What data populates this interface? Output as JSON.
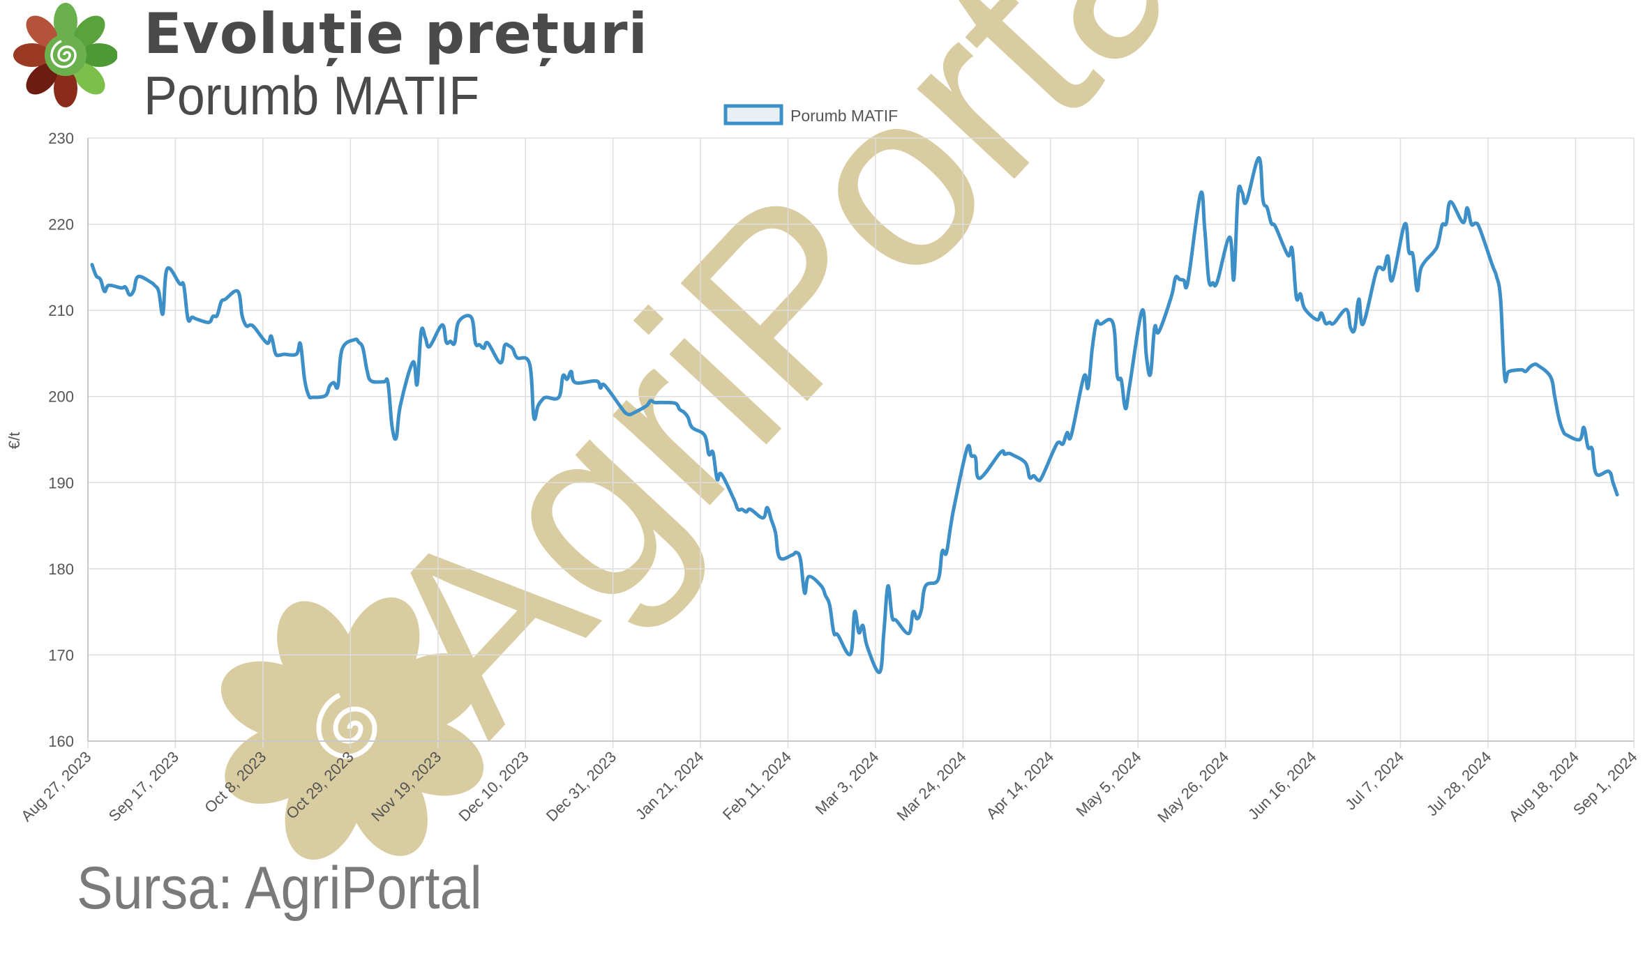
{
  "header": {
    "title": "Evoluție prețuri",
    "subtitle": "Porumb MATIF"
  },
  "watermark": {
    "text": "AgriPortal",
    "color": "#d8cca0"
  },
  "footer": {
    "source": "Sursa: AgriPortal"
  },
  "chart_data": {
    "type": "line",
    "title": "Evoluție prețuri",
    "subtitle": "Porumb MATIF",
    "xlabel": "",
    "ylabel": "€/t",
    "ylim": [
      160,
      230
    ],
    "xlim": [
      "2023-08-27",
      "2024-09-01"
    ],
    "yticks": [
      160,
      170,
      180,
      190,
      200,
      210,
      220,
      230
    ],
    "xtick_labels": [
      "Aug 27, 2023",
      "Sep 17, 2023",
      "Oct 8, 2023",
      "Oct 29, 2023",
      "Nov 19, 2023",
      "Dec 10, 2023",
      "Dec 31, 2023",
      "Jan 21, 2024",
      "Feb 11, 2024",
      "Mar 3, 2024",
      "Mar 24, 2024",
      "Apr 14, 2024",
      "May 5, 2024",
      "May 26, 2024",
      "Jun 16, 2024",
      "Jul 7, 2024",
      "Jul 28, 2024",
      "Aug 18, 2024",
      "Sep 1, 2024"
    ],
    "xtick_dates": [
      "2023-08-27",
      "2023-09-17",
      "2023-10-08",
      "2023-10-29",
      "2023-11-19",
      "2023-12-10",
      "2023-12-31",
      "2024-01-21",
      "2024-02-11",
      "2024-03-03",
      "2024-03-24",
      "2024-04-14",
      "2024-05-05",
      "2024-05-26",
      "2024-06-16",
      "2024-07-07",
      "2024-07-28",
      "2024-08-18",
      "2024-09-01"
    ],
    "grid": true,
    "legend": "top-center",
    "series": [
      {
        "name": "Porumb MATIF",
        "color": "#3d8fc7",
        "points": [
          [
            "2023-08-28",
            215.3
          ],
          [
            "2023-08-29",
            214.0
          ],
          [
            "2023-08-30",
            213.6
          ],
          [
            "2023-08-31",
            212.2
          ],
          [
            "2023-09-01",
            212.9
          ],
          [
            "2023-09-04",
            212.6
          ],
          [
            "2023-09-05",
            212.7
          ],
          [
            "2023-09-06",
            211.8
          ],
          [
            "2023-09-07",
            212.3
          ],
          [
            "2023-09-08",
            213.9
          ],
          [
            "2023-09-11",
            213.3
          ],
          [
            "2023-09-12",
            212.9
          ],
          [
            "2023-09-13",
            212.2
          ],
          [
            "2023-09-14",
            209.6
          ],
          [
            "2023-09-15",
            214.8
          ],
          [
            "2023-09-18",
            213.1
          ],
          [
            "2023-09-19",
            212.9
          ],
          [
            "2023-09-20",
            209.0
          ],
          [
            "2023-09-21",
            209.2
          ],
          [
            "2023-09-22",
            209.0
          ],
          [
            "2023-09-25",
            208.6
          ],
          [
            "2023-09-26",
            209.3
          ],
          [
            "2023-09-27",
            209.4
          ],
          [
            "2023-09-28",
            211.0
          ],
          [
            "2023-09-29",
            211.3
          ],
          [
            "2023-10-02",
            212.2
          ],
          [
            "2023-10-03",
            209.4
          ],
          [
            "2023-10-04",
            208.2
          ],
          [
            "2023-10-05",
            208.3
          ],
          [
            "2023-10-06",
            208.0
          ],
          [
            "2023-10-09",
            206.2
          ],
          [
            "2023-10-10",
            207.0
          ],
          [
            "2023-10-11",
            205.0
          ],
          [
            "2023-10-12",
            204.8
          ],
          [
            "2023-10-13",
            204.9
          ],
          [
            "2023-10-16",
            204.9
          ],
          [
            "2023-10-17",
            206.1
          ],
          [
            "2023-10-18",
            202.0
          ],
          [
            "2023-10-19",
            200.1
          ],
          [
            "2023-10-20",
            199.9
          ],
          [
            "2023-10-23",
            200.1
          ],
          [
            "2023-10-24",
            201.2
          ],
          [
            "2023-10-25",
            201.6
          ],
          [
            "2023-10-26",
            201.2
          ],
          [
            "2023-10-27",
            205.5
          ],
          [
            "2023-10-30",
            206.6
          ],
          [
            "2023-10-31",
            206.3
          ],
          [
            "2023-11-01",
            205.6
          ],
          [
            "2023-11-02",
            203.0
          ],
          [
            "2023-11-03",
            201.8
          ],
          [
            "2023-11-06",
            201.7
          ],
          [
            "2023-11-07",
            201.6
          ],
          [
            "2023-11-08",
            196.5
          ],
          [
            "2023-11-09",
            195.2
          ],
          [
            "2023-11-10",
            199.0
          ],
          [
            "2023-11-13",
            204.0
          ],
          [
            "2023-11-14",
            201.4
          ],
          [
            "2023-11-15",
            207.6
          ],
          [
            "2023-11-16",
            206.8
          ],
          [
            "2023-11-17",
            205.8
          ],
          [
            "2023-11-20",
            208.3
          ],
          [
            "2023-11-21",
            206.3
          ],
          [
            "2023-11-22",
            206.4
          ],
          [
            "2023-11-23",
            206.2
          ],
          [
            "2023-11-24",
            208.7
          ],
          [
            "2023-11-27",
            209.2
          ],
          [
            "2023-11-28",
            206.2
          ],
          [
            "2023-11-29",
            206.0
          ],
          [
            "2023-11-30",
            205.6
          ],
          [
            "2023-12-01",
            206.2
          ],
          [
            "2023-12-04",
            203.9
          ],
          [
            "2023-12-05",
            205.9
          ],
          [
            "2023-12-06",
            205.9
          ],
          [
            "2023-12-07",
            205.5
          ],
          [
            "2023-12-08",
            204.5
          ],
          [
            "2023-12-11",
            203.8
          ],
          [
            "2023-12-12",
            197.6
          ],
          [
            "2023-12-13",
            198.9
          ],
          [
            "2023-12-14",
            199.6
          ],
          [
            "2023-12-15",
            199.9
          ],
          [
            "2023-12-18",
            199.9
          ],
          [
            "2023-12-19",
            202.4
          ],
          [
            "2023-12-20",
            202.0
          ],
          [
            "2023-12-21",
            202.9
          ],
          [
            "2023-12-22",
            201.6
          ],
          [
            "2023-12-27",
            201.8
          ],
          [
            "2023-12-28",
            201.0
          ],
          [
            "2023-12-29",
            201.3
          ],
          [
            "2024-01-02",
            198.7
          ],
          [
            "2024-01-03",
            198.1
          ],
          [
            "2024-01-04",
            197.9
          ],
          [
            "2024-01-05",
            198.1
          ],
          [
            "2024-01-08",
            198.9
          ],
          [
            "2024-01-09",
            199.5
          ],
          [
            "2024-01-10",
            199.3
          ],
          [
            "2024-01-11",
            199.3
          ],
          [
            "2024-01-12",
            199.3
          ],
          [
            "2024-01-15",
            199.2
          ],
          [
            "2024-01-16",
            198.5
          ],
          [
            "2024-01-17",
            198.2
          ],
          [
            "2024-01-18",
            197.6
          ],
          [
            "2024-01-19",
            196.4
          ],
          [
            "2024-01-22",
            195.5
          ],
          [
            "2024-01-23",
            193.3
          ],
          [
            "2024-01-24",
            193.5
          ],
          [
            "2024-01-25",
            190.4
          ],
          [
            "2024-01-26",
            191.0
          ],
          [
            "2024-01-29",
            188.1
          ],
          [
            "2024-01-30",
            186.9
          ],
          [
            "2024-01-31",
            186.9
          ],
          [
            "2024-02-01",
            186.6
          ],
          [
            "2024-02-02",
            186.9
          ],
          [
            "2024-02-05",
            185.9
          ],
          [
            "2024-02-06",
            187.1
          ],
          [
            "2024-02-07",
            185.7
          ],
          [
            "2024-02-08",
            184.2
          ],
          [
            "2024-02-09",
            181.3
          ],
          [
            "2024-02-12",
            181.6
          ],
          [
            "2024-02-13",
            181.9
          ],
          [
            "2024-02-14",
            181.1
          ],
          [
            "2024-02-15",
            177.2
          ],
          [
            "2024-02-16",
            179.1
          ],
          [
            "2024-02-19",
            178.0
          ],
          [
            "2024-02-20",
            176.9
          ],
          [
            "2024-02-21",
            175.8
          ],
          [
            "2024-02-22",
            172.6
          ],
          [
            "2024-02-23",
            172.3
          ],
          [
            "2024-02-26",
            170.1
          ],
          [
            "2024-02-27",
            175.0
          ],
          [
            "2024-02-28",
            172.6
          ],
          [
            "2024-02-29",
            173.4
          ],
          [
            "2024-03-01",
            171.0
          ],
          [
            "2024-03-04",
            168.0
          ],
          [
            "2024-03-05",
            172.6
          ],
          [
            "2024-03-06",
            178.0
          ],
          [
            "2024-03-07",
            174.4
          ],
          [
            "2024-03-08",
            174.0
          ],
          [
            "2024-03-11",
            172.5
          ],
          [
            "2024-03-12",
            175.0
          ],
          [
            "2024-03-13",
            174.2
          ],
          [
            "2024-03-14",
            175.2
          ],
          [
            "2024-03-15",
            178.0
          ],
          [
            "2024-03-18",
            178.7
          ],
          [
            "2024-03-19",
            182.0
          ],
          [
            "2024-03-20",
            181.8
          ],
          [
            "2024-03-21",
            184.8
          ],
          [
            "2024-03-22",
            187.5
          ],
          [
            "2024-03-25",
            194.0
          ],
          [
            "2024-03-26",
            193.1
          ],
          [
            "2024-03-27",
            192.9
          ],
          [
            "2024-03-28",
            190.5
          ],
          [
            "2024-04-02",
            193.5
          ],
          [
            "2024-04-03",
            193.3
          ],
          [
            "2024-04-04",
            193.4
          ],
          [
            "2024-04-05",
            193.2
          ],
          [
            "2024-04-08",
            192.3
          ],
          [
            "2024-04-09",
            190.6
          ],
          [
            "2024-04-10",
            190.8
          ],
          [
            "2024-04-11",
            190.3
          ],
          [
            "2024-04-12",
            190.7
          ],
          [
            "2024-04-15",
            194.0
          ],
          [
            "2024-04-16",
            194.7
          ],
          [
            "2024-04-17",
            194.5
          ],
          [
            "2024-04-18",
            195.8
          ],
          [
            "2024-04-19",
            195.5
          ],
          [
            "2024-04-22",
            202.3
          ],
          [
            "2024-04-23",
            201.0
          ],
          [
            "2024-04-24",
            205.5
          ],
          [
            "2024-04-25",
            208.6
          ],
          [
            "2024-04-26",
            208.4
          ],
          [
            "2024-04-29",
            208.5
          ],
          [
            "2024-04-30",
            202.5
          ],
          [
            "2024-05-01",
            201.9
          ],
          [
            "2024-05-02",
            198.6
          ],
          [
            "2024-05-03",
            201.3
          ],
          [
            "2024-05-06",
            210.0
          ],
          [
            "2024-05-07",
            204.7
          ],
          [
            "2024-05-08",
            202.6
          ],
          [
            "2024-05-09",
            208.0
          ],
          [
            "2024-05-10",
            207.5
          ],
          [
            "2024-05-13",
            211.6
          ],
          [
            "2024-05-14",
            213.8
          ],
          [
            "2024-05-15",
            213.6
          ],
          [
            "2024-05-16",
            213.5
          ],
          [
            "2024-05-17",
            213.4
          ],
          [
            "2024-05-20",
            223.5
          ],
          [
            "2024-05-21",
            219.5
          ],
          [
            "2024-05-22",
            213.5
          ],
          [
            "2024-05-23",
            213.2
          ],
          [
            "2024-05-24",
            213.3
          ],
          [
            "2024-05-27",
            218.5
          ],
          [
            "2024-05-28",
            213.6
          ],
          [
            "2024-05-29",
            223.5
          ],
          [
            "2024-05-30",
            223.7
          ],
          [
            "2024-05-31",
            222.6
          ],
          [
            "2024-06-03",
            227.7
          ],
          [
            "2024-06-04",
            222.8
          ],
          [
            "2024-06-05",
            221.9
          ],
          [
            "2024-06-06",
            220.1
          ],
          [
            "2024-06-07",
            219.7
          ],
          [
            "2024-06-10",
            216.4
          ],
          [
            "2024-06-11",
            217.1
          ],
          [
            "2024-06-12",
            211.5
          ],
          [
            "2024-06-13",
            211.9
          ],
          [
            "2024-06-14",
            210.2
          ],
          [
            "2024-06-17",
            208.9
          ],
          [
            "2024-06-18",
            209.7
          ],
          [
            "2024-06-19",
            208.5
          ],
          [
            "2024-06-20",
            208.6
          ],
          [
            "2024-06-21",
            208.5
          ],
          [
            "2024-06-24",
            210.1
          ],
          [
            "2024-06-25",
            208.0
          ],
          [
            "2024-06-26",
            207.8
          ],
          [
            "2024-06-27",
            211.3
          ],
          [
            "2024-06-28",
            208.4
          ],
          [
            "2024-07-01",
            214.2
          ],
          [
            "2024-07-02",
            215.0
          ],
          [
            "2024-07-03",
            214.8
          ],
          [
            "2024-07-04",
            216.3
          ],
          [
            "2024-07-05",
            213.5
          ],
          [
            "2024-07-08",
            220.0
          ],
          [
            "2024-07-09",
            216.8
          ],
          [
            "2024-07-10",
            216.4
          ],
          [
            "2024-07-11",
            212.3
          ],
          [
            "2024-07-12",
            215.0
          ],
          [
            "2024-07-15",
            216.8
          ],
          [
            "2024-07-16",
            217.7
          ],
          [
            "2024-07-17",
            219.9
          ],
          [
            "2024-07-18",
            220.1
          ],
          [
            "2024-07-19",
            222.6
          ],
          [
            "2024-07-22",
            220.2
          ],
          [
            "2024-07-23",
            221.9
          ],
          [
            "2024-07-24",
            220.0
          ],
          [
            "2024-07-25",
            220.1
          ],
          [
            "2024-07-26",
            219.5
          ],
          [
            "2024-07-29",
            215.3
          ],
          [
            "2024-07-30",
            214.0
          ],
          [
            "2024-07-31",
            211.4
          ],
          [
            "2024-08-01",
            202.3
          ],
          [
            "2024-08-02",
            202.9
          ],
          [
            "2024-08-05",
            203.1
          ],
          [
            "2024-08-06",
            202.9
          ],
          [
            "2024-08-07",
            203.4
          ],
          [
            "2024-08-08",
            203.7
          ],
          [
            "2024-08-09",
            203.6
          ],
          [
            "2024-08-12",
            202.3
          ],
          [
            "2024-08-13",
            200.0
          ],
          [
            "2024-08-14",
            197.5
          ],
          [
            "2024-08-15",
            196.0
          ],
          [
            "2024-08-16",
            195.5
          ],
          [
            "2024-08-19",
            195.0
          ],
          [
            "2024-08-20",
            196.4
          ],
          [
            "2024-08-21",
            194.1
          ],
          [
            "2024-08-22",
            193.9
          ],
          [
            "2024-08-23",
            191.0
          ],
          [
            "2024-08-26",
            191.3
          ],
          [
            "2024-08-27",
            190.0
          ],
          [
            "2024-08-28",
            188.6
          ]
        ]
      }
    ]
  }
}
